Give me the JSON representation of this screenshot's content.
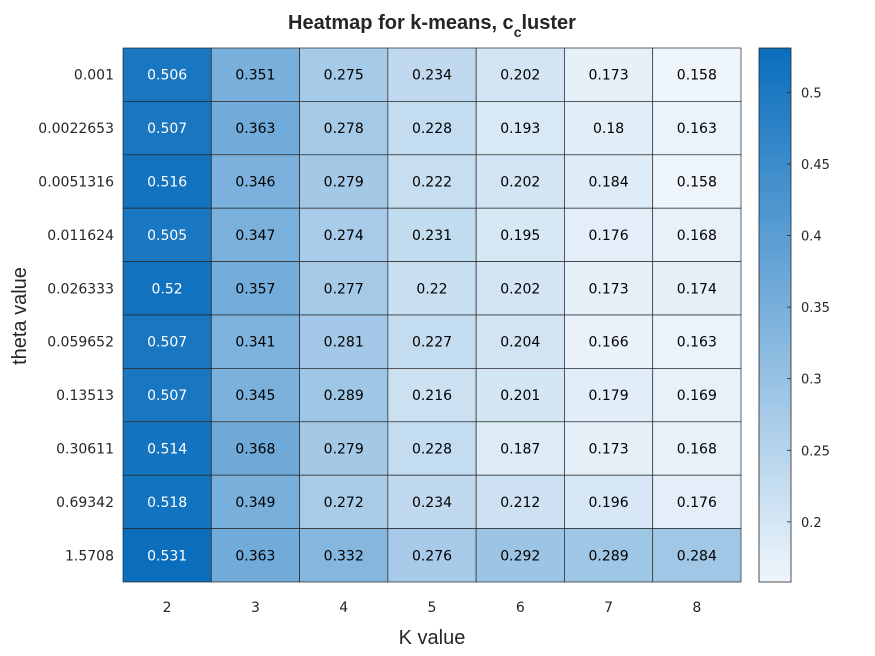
{
  "chart_data": {
    "type": "heatmap",
    "title": {
      "main": "Heatmap for k-means, c",
      "subscript": "c",
      "tail": "luster"
    },
    "xlabel": "K value",
    "ylabel": "theta value",
    "x_categories": [
      "2",
      "3",
      "4",
      "5",
      "6",
      "7",
      "8"
    ],
    "y_categories": [
      "0.001",
      "0.0022653",
      "0.0051316",
      "0.011624",
      "0.026333",
      "0.059652",
      "0.13513",
      "0.30611",
      "0.69342",
      "1.5708"
    ],
    "values": [
      [
        0.506,
        0.351,
        0.275,
        0.234,
        0.202,
        0.173,
        0.158
      ],
      [
        0.507,
        0.363,
        0.278,
        0.228,
        0.193,
        0.18,
        0.163
      ],
      [
        0.516,
        0.346,
        0.279,
        0.222,
        0.202,
        0.184,
        0.158
      ],
      [
        0.505,
        0.347,
        0.274,
        0.231,
        0.195,
        0.176,
        0.168
      ],
      [
        0.52,
        0.357,
        0.277,
        0.22,
        0.202,
        0.173,
        0.174
      ],
      [
        0.507,
        0.341,
        0.281,
        0.227,
        0.204,
        0.166,
        0.163
      ],
      [
        0.507,
        0.345,
        0.289,
        0.216,
        0.201,
        0.179,
        0.169
      ],
      [
        0.514,
        0.368,
        0.279,
        0.228,
        0.187,
        0.173,
        0.168
      ],
      [
        0.518,
        0.349,
        0.272,
        0.234,
        0.212,
        0.196,
        0.176
      ],
      [
        0.531,
        0.363,
        0.332,
        0.276,
        0.292,
        0.289,
        0.284
      ]
    ],
    "colorbar": {
      "range": [
        0.158,
        0.531
      ],
      "ticks": [
        0.2,
        0.25,
        0.3,
        0.35,
        0.4,
        0.45,
        0.5
      ],
      "tick_labels": [
        "0.2",
        "0.25",
        "0.3",
        "0.35",
        "0.4",
        "0.45",
        "0.5"
      ],
      "low_color": "#eef5fb",
      "high_color": "#0a6ebd"
    },
    "colors": {
      "grid_line": "#262626",
      "text_dark": "#000000",
      "text_light": "#ffffff"
    }
  }
}
